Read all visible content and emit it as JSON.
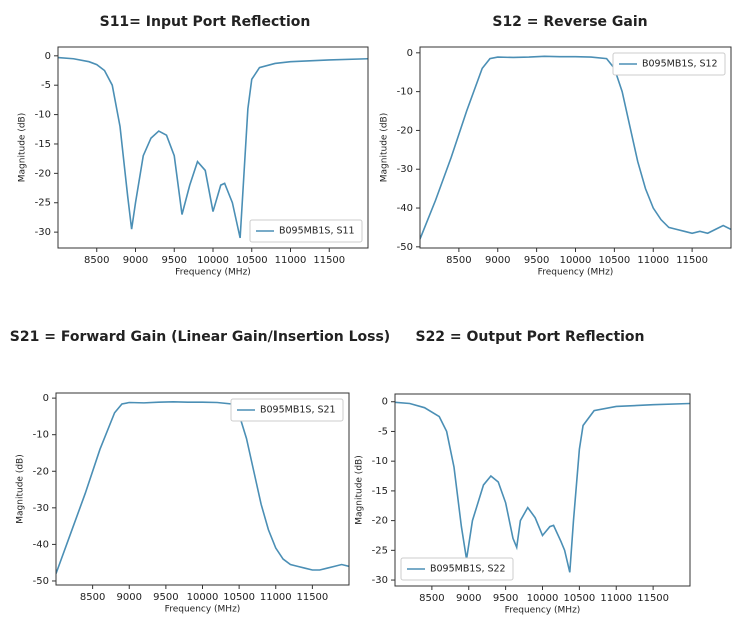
{
  "chart_data": [
    {
      "type": "line",
      "title": "S11= Input Port Reflection",
      "xlabel": "Frequency (MHz)",
      "ylabel": "Magnitude (dB)",
      "x": [
        8000,
        8200,
        8400,
        8500,
        8600,
        8700,
        8800,
        8900,
        8950,
        9000,
        9100,
        9200,
        9300,
        9400,
        9500,
        9600,
        9700,
        9800,
        9900,
        10000,
        10100,
        10150,
        10250,
        10350,
        10400,
        10450,
        10500,
        10600,
        10800,
        11000,
        11500,
        12000
      ],
      "series": [
        {
          "name": "B095MB1S, S11",
          "color": "#4b8fb5",
          "values": [
            -0.3,
            -0.5,
            -1,
            -1.5,
            -2.5,
            -5,
            -12,
            -24,
            -29.5,
            -25,
            -17,
            -14,
            -12.8,
            -13.5,
            -17,
            -27,
            -22,
            -18,
            -19.5,
            -26.5,
            -22,
            -21.7,
            -25,
            -31,
            -20,
            -9,
            -4,
            -2,
            -1.3,
            -1,
            -0.7,
            -0.5
          ]
        }
      ],
      "xlim": [
        8000,
        12000
      ],
      "ylim": [
        -32.7,
        1.5
      ],
      "xticks": [
        8500,
        9000,
        9500,
        10000,
        10500,
        11000,
        11500
      ],
      "yticks": [
        0,
        -5,
        -10,
        -15,
        -20,
        -25,
        -30
      ],
      "legend": "lower right"
    },
    {
      "type": "line",
      "title": "S12 = Reverse Gain",
      "xlabel": "Frequency (MHz)",
      "ylabel": "Magnitude (dB)",
      "x": [
        8000,
        8200,
        8400,
        8600,
        8800,
        8900,
        9000,
        9200,
        9400,
        9600,
        9800,
        10000,
        10200,
        10400,
        10500,
        10600,
        10700,
        10800,
        10900,
        11000,
        11100,
        11200,
        11300,
        11400,
        11500,
        11600,
        11700,
        11800,
        11900,
        12000
      ],
      "series": [
        {
          "name": "B095MB1S, S12",
          "color": "#4b8fb5",
          "values": [
            -48,
            -38,
            -27,
            -15,
            -4,
            -1.5,
            -1.1,
            -1.2,
            -1.1,
            -0.9,
            -1,
            -1,
            -1.1,
            -1.5,
            -4,
            -10,
            -19,
            -28,
            -35,
            -40,
            -43,
            -45,
            -45.5,
            -46,
            -46.5,
            -46,
            -46.5,
            -45.5,
            -44.5,
            -45.5
          ]
        }
      ],
      "xlim": [
        8000,
        12000
      ],
      "ylim": [
        -50.3,
        1.5
      ],
      "xticks": [
        8500,
        9000,
        9500,
        10000,
        10500,
        11000,
        11500
      ],
      "yticks": [
        0,
        -10,
        -20,
        -30,
        -40,
        -50
      ],
      "legend": "upper right"
    },
    {
      "type": "line",
      "title": "S21 = Forward Gain (Linear Gain/Insertion Loss)",
      "xlabel": "Frequency (MHz)",
      "ylabel": "Magnitude (dB)",
      "x": [
        8000,
        8200,
        8400,
        8600,
        8800,
        8900,
        9000,
        9200,
        9400,
        9600,
        9800,
        10000,
        10200,
        10400,
        10500,
        10600,
        10700,
        10800,
        10900,
        11000,
        11100,
        11200,
        11300,
        11400,
        11500,
        11600,
        11700,
        11800,
        11900,
        12000
      ],
      "series": [
        {
          "name": "B095MB1S, S21",
          "color": "#4b8fb5",
          "values": [
            -48,
            -37,
            -26,
            -14,
            -4,
            -1.6,
            -1.2,
            -1.3,
            -1.1,
            -1,
            -1.1,
            -1.1,
            -1.2,
            -1.6,
            -4.5,
            -11,
            -20,
            -29,
            -36,
            -41,
            -44,
            -45.5,
            -46,
            -46.5,
            -47,
            -47,
            -46.5,
            -46,
            -45.5,
            -46
          ]
        }
      ],
      "xlim": [
        8000,
        12000
      ],
      "ylim": [
        -51.1,
        1.4
      ],
      "xticks": [
        8500,
        9000,
        9500,
        10000,
        10500,
        11000,
        11500
      ],
      "yticks": [
        0,
        -10,
        -20,
        -30,
        -40,
        -50
      ],
      "legend": "upper right"
    },
    {
      "type": "line",
      "title": "S22 = Output Port Reflection",
      "xlabel": "Frequency (MHz)",
      "ylabel": "Magnitude (dB)",
      "x": [
        8000,
        8200,
        8400,
        8600,
        8700,
        8800,
        8900,
        8970,
        9050,
        9200,
        9300,
        9400,
        9500,
        9600,
        9650,
        9700,
        9800,
        9900,
        10000,
        10100,
        10150,
        10250,
        10300,
        10370,
        10420,
        10500,
        10550,
        10700,
        11000,
        11500,
        12000
      ],
      "series": [
        {
          "name": "B095MB1S, S22",
          "color": "#4b8fb5",
          "values": [
            -0.1,
            -0.3,
            -1,
            -2.5,
            -5,
            -11,
            -21,
            -26.5,
            -20,
            -14,
            -12.5,
            -13.5,
            -17,
            -23,
            -24.5,
            -20,
            -17.8,
            -19.5,
            -22.5,
            -21,
            -20.8,
            -23.5,
            -25,
            -28.7,
            -20,
            -8,
            -4,
            -1.5,
            -0.8,
            -0.5,
            -0.3
          ]
        }
      ],
      "xlim": [
        8000,
        12000
      ],
      "ylim": [
        -31,
        1.3
      ],
      "xticks": [
        8500,
        9000,
        9500,
        10000,
        10500,
        11000,
        11500
      ],
      "yticks": [
        0,
        -5,
        -10,
        -15,
        -20,
        -25,
        -30
      ],
      "legend": "lower left"
    }
  ]
}
